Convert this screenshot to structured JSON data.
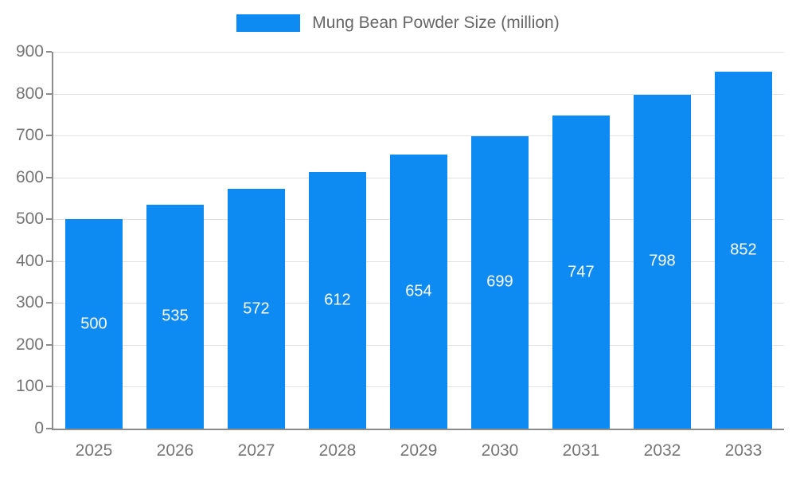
{
  "chart_data": {
    "type": "bar",
    "categories": [
      "2025",
      "2026",
      "2027",
      "2028",
      "2029",
      "2030",
      "2031",
      "2032",
      "2033"
    ],
    "values": [
      500,
      535,
      572,
      612,
      654,
      699,
      747,
      798,
      852
    ],
    "title": "",
    "legend": "Mung Bean Powder Size (million)",
    "xlabel": "",
    "ylabel": "",
    "ylim": [
      0,
      900
    ],
    "ytick_step": 100,
    "grid": true,
    "legend_position": "top-center",
    "bar_color": "#0D8BF2",
    "bar_label_color": "#ffffff"
  },
  "colors": {
    "bar": "#0D8BF2",
    "axis_line": "#8c8c8c",
    "grid_line": "#e2e2e2",
    "tick_text": "#757575",
    "legend_text": "#666666",
    "background": "#ffffff"
  }
}
